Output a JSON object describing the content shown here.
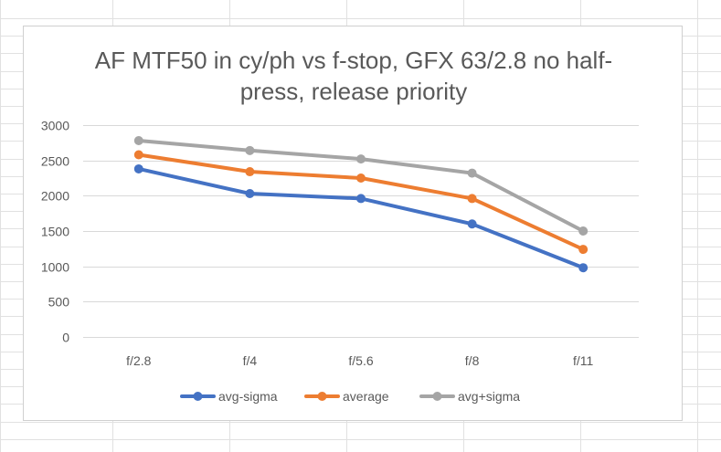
{
  "chart_data": {
    "type": "line",
    "title_lines": [
      "AF MTF50 in cy/ph vs f-stop, GFX 63/2.8 no half-",
      "press, release priority"
    ],
    "title": "AF MTF50 in cy/ph vs f-stop, GFX 63/2.8 no half-press, release priority",
    "categories": [
      "f/2.8",
      "f/4",
      "f/5.6",
      "f/8",
      "f/11"
    ],
    "ylim": [
      0,
      3000
    ],
    "yticks": [
      0,
      500,
      1000,
      1500,
      2000,
      2500,
      3000
    ],
    "grid": true,
    "legend_position": "bottom",
    "series": [
      {
        "name": "avg-sigma",
        "color": "#4472C4",
        "values": [
          2380,
          2030,
          1960,
          1600,
          980
        ]
      },
      {
        "name": "average",
        "color": "#ED7D31",
        "values": [
          2580,
          2340,
          2250,
          1960,
          1240
        ]
      },
      {
        "name": "avg+sigma",
        "color": "#A5A5A5",
        "values": [
          2780,
          2640,
          2520,
          2320,
          1500
        ]
      }
    ]
  },
  "colors": {
    "gridline": "#d9d9d9",
    "sheet_gridline": "#e1e1e1",
    "text": "#595959"
  }
}
